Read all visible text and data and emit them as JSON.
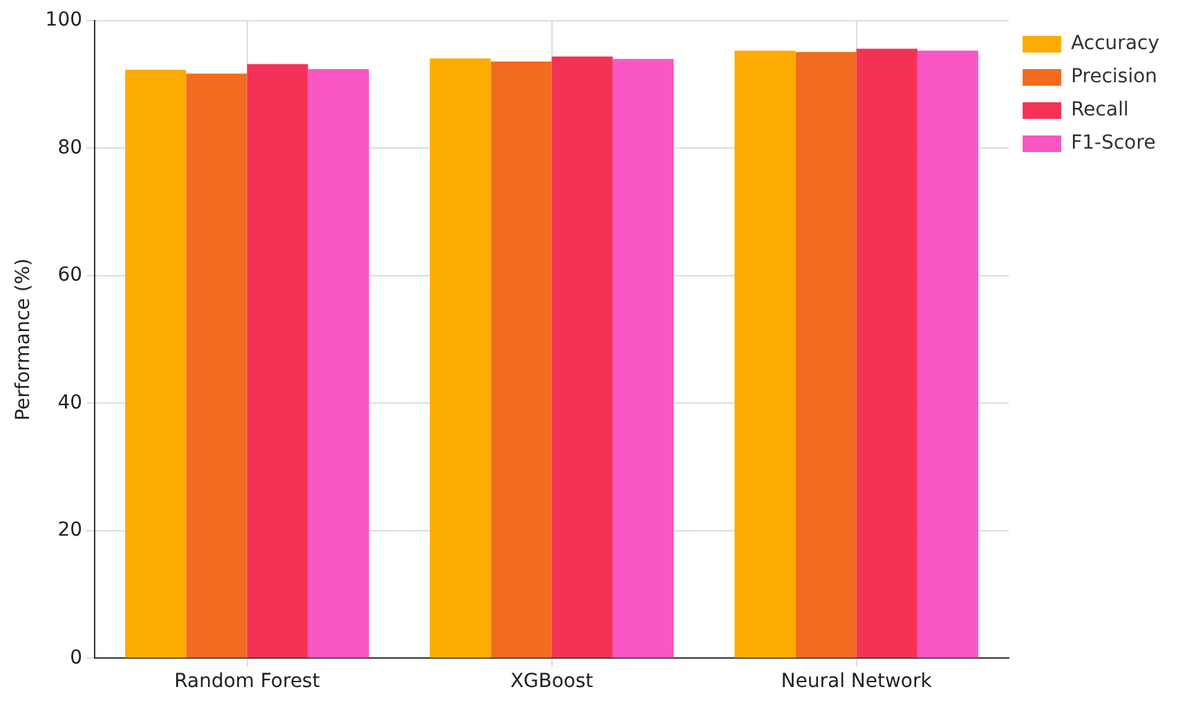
{
  "chart_data": {
    "type": "bar",
    "ylabel": "Performance (%)",
    "categories": [
      "Random Forest",
      "XGBoost",
      "Neural Network"
    ],
    "series": [
      {
        "name": "Accuracy",
        "color": "#fdab00",
        "values": [
          92.3,
          94.1,
          95.3
        ]
      },
      {
        "name": "Precision",
        "color": "#f26b21",
        "values": [
          91.7,
          93.6,
          95.1
        ]
      },
      {
        "name": "Recall",
        "color": "#f43256",
        "values": [
          93.2,
          94.4,
          95.6
        ]
      },
      {
        "name": "F1-Score",
        "color": "#f957c4",
        "values": [
          92.4,
          94.0,
          95.3
        ]
      }
    ],
    "ylim": [
      0,
      100
    ],
    "yticks": [
      0,
      20,
      40,
      60,
      80,
      100
    ],
    "grid": true,
    "legend": "right"
  }
}
